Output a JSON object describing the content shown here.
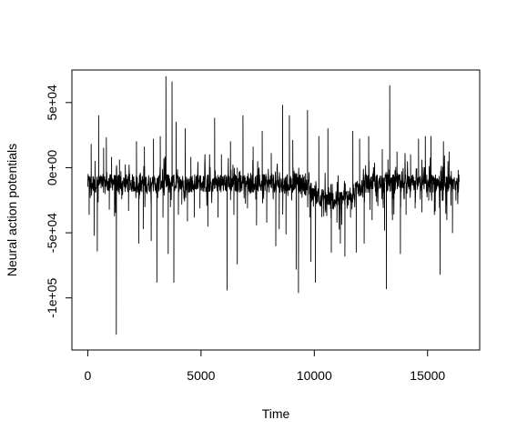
{
  "chart_data": {
    "type": "line",
    "title": "",
    "xlabel": "Time",
    "ylabel": "Neural action potentials",
    "xlim": [
      -700,
      17300
    ],
    "ylim": [
      -140000,
      75000
    ],
    "x_ticks": [
      0,
      5000,
      10000,
      15000
    ],
    "x_tick_labels": [
      "0",
      "5000",
      "10000",
      "15000"
    ],
    "y_ticks": [
      -100000,
      -50000,
      0,
      50000
    ],
    "y_tick_labels": [
      "-1e+05",
      "-5e+04",
      "0e+00",
      "5e+04"
    ],
    "grid": false,
    "legend": "none",
    "line_color": "#000000",
    "series": [
      {
        "x_start": 1,
        "x_end": 16400,
        "baseline_level": -12000,
        "baseline_dip": {
          "x_from": 9500,
          "x_to": 12200,
          "level": -25000
        },
        "spikes": [
          {
            "x": 60,
            "y": -36000
          },
          {
            "x": 150,
            "y": 18000
          },
          {
            "x": 280,
            "y": -52000
          },
          {
            "x": 320,
            "y": 5000
          },
          {
            "x": 420,
            "y": -64000
          },
          {
            "x": 480,
            "y": 40000
          },
          {
            "x": 700,
            "y": 15000
          },
          {
            "x": 760,
            "y": -20000
          },
          {
            "x": 820,
            "y": 23000
          },
          {
            "x": 950,
            "y": -32000
          },
          {
            "x": 1050,
            "y": 8000
          },
          {
            "x": 1180,
            "y": -37000
          },
          {
            "x": 1260,
            "y": -128000
          },
          {
            "x": 1400,
            "y": 6000
          },
          {
            "x": 1500,
            "y": -24000
          },
          {
            "x": 1800,
            "y": -33000
          },
          {
            "x": 2150,
            "y": 20000
          },
          {
            "x": 2250,
            "y": -58000
          },
          {
            "x": 2450,
            "y": -47000
          },
          {
            "x": 2500,
            "y": 16000
          },
          {
            "x": 2800,
            "y": -56000
          },
          {
            "x": 2900,
            "y": 22000
          },
          {
            "x": 3050,
            "y": -88000
          },
          {
            "x": 3200,
            "y": 24000
          },
          {
            "x": 3320,
            "y": -38000
          },
          {
            "x": 3450,
            "y": 70000
          },
          {
            "x": 3550,
            "y": -66000
          },
          {
            "x": 3650,
            "y": -30000
          },
          {
            "x": 3720,
            "y": 66000
          },
          {
            "x": 3800,
            "y": -88000
          },
          {
            "x": 3900,
            "y": 35000
          },
          {
            "x": 4000,
            "y": -36000
          },
          {
            "x": 4150,
            "y": -28000
          },
          {
            "x": 4300,
            "y": 30000
          },
          {
            "x": 4400,
            "y": -41000
          },
          {
            "x": 4550,
            "y": 8000
          },
          {
            "x": 4700,
            "y": -38000
          },
          {
            "x": 4950,
            "y": -31000
          },
          {
            "x": 5300,
            "y": -45000
          },
          {
            "x": 5600,
            "y": 38000
          },
          {
            "x": 5750,
            "y": -38000
          },
          {
            "x": 5900,
            "y": 10000
          },
          {
            "x": 6150,
            "y": -94000
          },
          {
            "x": 6300,
            "y": 20000
          },
          {
            "x": 6450,
            "y": -36000
          },
          {
            "x": 6600,
            "y": -74000
          },
          {
            "x": 6850,
            "y": 40000
          },
          {
            "x": 7050,
            "y": -31000
          },
          {
            "x": 7300,
            "y": 16000
          },
          {
            "x": 7450,
            "y": -44000
          },
          {
            "x": 7700,
            "y": 28000
          },
          {
            "x": 7900,
            "y": -42000
          },
          {
            "x": 8100,
            "y": 11000
          },
          {
            "x": 8300,
            "y": -60000
          },
          {
            "x": 8450,
            "y": -47000
          },
          {
            "x": 8600,
            "y": 48000
          },
          {
            "x": 8750,
            "y": -51000
          },
          {
            "x": 8900,
            "y": 40000
          },
          {
            "x": 9050,
            "y": 21000
          },
          {
            "x": 9200,
            "y": -78000
          },
          {
            "x": 9300,
            "y": -96000
          },
          {
            "x": 9400,
            "y": -20000
          },
          {
            "x": 9700,
            "y": 44000
          },
          {
            "x": 9800,
            "y": -38000
          },
          {
            "x": 9850,
            "y": -72000
          },
          {
            "x": 10050,
            "y": -88000
          },
          {
            "x": 10200,
            "y": 24000
          },
          {
            "x": 10500,
            "y": -34000
          },
          {
            "x": 10600,
            "y": 30000
          },
          {
            "x": 10750,
            "y": -65000
          },
          {
            "x": 11000,
            "y": -42000
          },
          {
            "x": 11150,
            "y": -58000
          },
          {
            "x": 11350,
            "y": -68000
          },
          {
            "x": 11600,
            "y": -38000
          },
          {
            "x": 11700,
            "y": 28000
          },
          {
            "x": 11850,
            "y": -65000
          },
          {
            "x": 12000,
            "y": 22000
          },
          {
            "x": 12200,
            "y": -58000
          },
          {
            "x": 12400,
            "y": 24000
          },
          {
            "x": 12550,
            "y": -40000
          },
          {
            "x": 12750,
            "y": -26000
          },
          {
            "x": 13000,
            "y": 14000
          },
          {
            "x": 13100,
            "y": -48000
          },
          {
            "x": 13180,
            "y": -93000
          },
          {
            "x": 13250,
            "y": 6000
          },
          {
            "x": 13330,
            "y": 63000
          },
          {
            "x": 13450,
            "y": -40000
          },
          {
            "x": 13650,
            "y": 12000
          },
          {
            "x": 13800,
            "y": -66000
          },
          {
            "x": 14050,
            "y": -36000
          },
          {
            "x": 14250,
            "y": 10000
          },
          {
            "x": 14450,
            "y": -31000
          },
          {
            "x": 14600,
            "y": 22000
          },
          {
            "x": 14750,
            "y": -34000
          },
          {
            "x": 14900,
            "y": 24000
          },
          {
            "x": 15050,
            "y": -25000
          },
          {
            "x": 15150,
            "y": 24000
          },
          {
            "x": 15300,
            "y": -36000
          },
          {
            "x": 15550,
            "y": -82000
          },
          {
            "x": 15700,
            "y": 20000
          },
          {
            "x": 15850,
            "y": -40000
          },
          {
            "x": 15950,
            "y": 12000
          },
          {
            "x": 16100,
            "y": -50000
          },
          {
            "x": 16250,
            "y": -25000
          },
          {
            "x": 16350,
            "y": -2000
          }
        ]
      }
    ]
  }
}
